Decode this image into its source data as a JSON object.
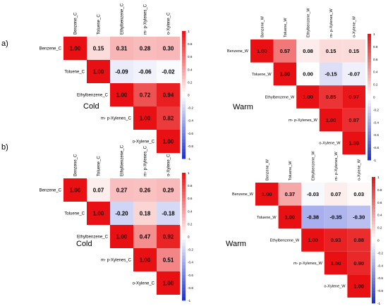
{
  "panel_labels": [
    "a)",
    "b)"
  ],
  "colorbar_ticks": [
    "1",
    "0.8",
    "0.6",
    "0.4",
    "0.2",
    "0",
    "-0.2",
    "-0.4",
    "-0.6",
    "-0.8",
    "-1"
  ],
  "colorscale": {
    "negative": "#1b2ccc",
    "zero": "#ffffff",
    "positive": "#e81012"
  },
  "chart_data": [
    {
      "type": "heatmap",
      "id": "a_cold",
      "panel": "a)",
      "condition": "Cold",
      "labels": [
        "Benzene_C",
        "Toluene_C",
        "Ethylbenzene_C",
        "m- p-Xylenes_C",
        "o-Xylene_C"
      ],
      "matrix": [
        [
          1.0,
          0.15,
          0.31,
          0.28,
          0.3
        ],
        [
          null,
          1.0,
          -0.09,
          -0.06,
          -0.02
        ],
        [
          null,
          null,
          1.0,
          0.72,
          0.94
        ],
        [
          null,
          null,
          null,
          1.0,
          0.82
        ],
        [
          null,
          null,
          null,
          null,
          1.0
        ]
      ],
      "display": [
        "1.00",
        "0.15",
        "0.31",
        "0.28",
        "0.30",
        "1.00",
        "-0.09",
        "-0.06",
        "-0.02",
        "1.00",
        "0.72",
        "0.94",
        "1.00",
        "0.82",
        "1.00"
      ],
      "scale_range": [
        -1,
        1
      ]
    },
    {
      "type": "heatmap",
      "id": "a_warm",
      "panel": "a)",
      "condition": "Warm",
      "labels": [
        "Benzene_W",
        "Toluene_W",
        "Ethylbenzene_W",
        "m- p-Xylenes_W",
        "o-Xylene_W"
      ],
      "matrix": [
        [
          1.0,
          0.57,
          0.08,
          0.15,
          0.15
        ],
        [
          null,
          1.0,
          0.0,
          -0.15,
          -0.07
        ],
        [
          null,
          null,
          1.0,
          0.85,
          0.97
        ],
        [
          null,
          null,
          null,
          1.0,
          0.87
        ],
        [
          null,
          null,
          null,
          null,
          1.0
        ]
      ],
      "display": [
        "1.00",
        "0.57",
        "0.08",
        "0.15",
        "0.15",
        "1.00",
        "0.00",
        "-0.15",
        "-0.07",
        "1.00",
        "0.85",
        "0.97",
        "1.00",
        "0.87",
        "1.00"
      ],
      "scale_range": [
        -1,
        1
      ]
    },
    {
      "type": "heatmap",
      "id": "b_cold",
      "panel": "b)",
      "condition": "Cold",
      "labels": [
        "Benzene_C",
        "Toluene_C",
        "Ethylbenzene_C",
        "m- p-Xylenes_C",
        "o-Xylene_C"
      ],
      "matrix": [
        [
          1.0,
          0.07,
          0.27,
          0.26,
          0.29
        ],
        [
          null,
          1.0,
          -0.2,
          0.18,
          -0.18
        ],
        [
          null,
          null,
          1.0,
          0.47,
          0.92
        ],
        [
          null,
          null,
          null,
          1.0,
          0.51
        ],
        [
          null,
          null,
          null,
          null,
          1.0
        ]
      ],
      "display": [
        "1.00",
        "0.07",
        "0.27",
        "0.26",
        "0.29",
        "1.00",
        "-0.20",
        "0.18",
        "-0.18",
        "1.00",
        "0.47",
        "0.92",
        "1.00",
        "0.51",
        "1.00"
      ],
      "scale_range": [
        -1,
        1
      ]
    },
    {
      "type": "heatmap",
      "id": "b_warm",
      "panel": "b)",
      "condition": "Warm",
      "labels": [
        "Benzene_W",
        "Toluene_W",
        "Ethylbenzene_W",
        "m- p-Xylenes_W",
        "o-Xylene_W"
      ],
      "matrix": [
        [
          1.0,
          0.37,
          -0.03,
          0.07,
          0.03
        ],
        [
          null,
          1.0,
          -0.38,
          -0.35,
          -0.3
        ],
        [
          null,
          null,
          1.0,
          0.93,
          0.88
        ],
        [
          null,
          null,
          null,
          1.0,
          0.9
        ],
        [
          null,
          null,
          null,
          null,
          1.0
        ]
      ],
      "display": [
        "1.00",
        "0.37",
        "-0.03",
        "0.07",
        "0.03",
        "1.00",
        "-0.38",
        "-0.35",
        "-0.30",
        "1.00",
        "0.93",
        "0.88",
        "1.00",
        "0.90",
        "1.00"
      ],
      "scale_range": [
        -1,
        1
      ]
    }
  ]
}
